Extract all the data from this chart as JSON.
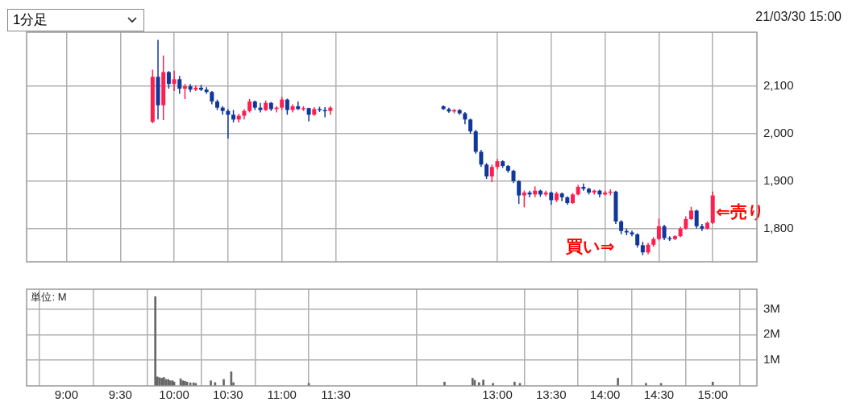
{
  "chart_data": [
    {
      "type": "candlestick",
      "title": "1分足",
      "subtitle": "21/03/30 15:00",
      "x": [
        9.8,
        9.85,
        9.9,
        9.95,
        10,
        10.05,
        10.1,
        10.15,
        10.2,
        10.25,
        10.3,
        10.35,
        10.4,
        10.45,
        10.5,
        10.55,
        10.6,
        10.65,
        10.7,
        10.75,
        10.8,
        10.85,
        10.9,
        10.95,
        11,
        11.05,
        11.1,
        11.15,
        11.2,
        11.25,
        11.3,
        11.35,
        11.4,
        11.45,
        12.5,
        12.55,
        12.6,
        12.65,
        12.7,
        12.75,
        12.8,
        12.85,
        12.9,
        12.95,
        13,
        13.05,
        13.1,
        13.15,
        13.2,
        13.25,
        13.3,
        13.35,
        13.4,
        13.45,
        13.5,
        13.55,
        13.6,
        13.65,
        13.7,
        13.75,
        13.8,
        13.85,
        13.9,
        13.95,
        14,
        14.05,
        14.1,
        14.15,
        14.2,
        14.25,
        14.3,
        14.35,
        14.4,
        14.45,
        14.5,
        14.55,
        14.6,
        14.65,
        14.7,
        14.75,
        14.8,
        14.85,
        14.9,
        14.95,
        15
      ],
      "ohlc": [
        [
          2025,
          2135,
          2022,
          2120
        ],
        [
          2120,
          2198,
          2030,
          2060
        ],
        [
          2060,
          2165,
          2029,
          2130
        ],
        [
          2130,
          2132,
          2095,
          2105
        ],
        [
          2105,
          2133,
          2090,
          2115
        ],
        [
          2115,
          2122,
          2084,
          2095
        ],
        [
          2095,
          2105,
          2073,
          2100
        ],
        [
          2100,
          2105,
          2088,
          2093
        ],
        [
          2093,
          2102,
          2090,
          2097
        ],
        [
          2097,
          2103,
          2090,
          2093
        ],
        [
          2093,
          2098,
          2084,
          2088
        ],
        [
          2088,
          2090,
          2062,
          2068
        ],
        [
          2068,
          2072,
          2050,
          2055
        ],
        [
          2055,
          2058,
          2040,
          2048
        ],
        [
          2048,
          2052,
          1990,
          2040
        ],
        [
          2040,
          2050,
          2024,
          2030
        ],
        [
          2030,
          2042,
          2024,
          2038
        ],
        [
          2038,
          2052,
          2030,
          2048
        ],
        [
          2048,
          2073,
          2045,
          2068
        ],
        [
          2068,
          2070,
          2050,
          2055
        ],
        [
          2055,
          2065,
          2045,
          2050
        ],
        [
          2050,
          2070,
          2048,
          2065
        ],
        [
          2065,
          2067,
          2048,
          2052
        ],
        [
          2052,
          2058,
          2045,
          2055
        ],
        [
          2055,
          2078,
          2050,
          2072
        ],
        [
          2072,
          2074,
          2040,
          2050
        ],
        [
          2050,
          2062,
          2045,
          2058
        ],
        [
          2058,
          2068,
          2050,
          2052
        ],
        [
          2052,
          2058,
          2048,
          2054
        ],
        [
          2054,
          2055,
          2026,
          2040
        ],
        [
          2040,
          2056,
          2038,
          2052
        ],
        [
          2052,
          2057,
          2046,
          2050
        ],
        [
          2050,
          2056,
          2035,
          2048
        ],
        [
          2048,
          2058,
          2040,
          2055
        ],
        [
          2058,
          2060,
          2050,
          2052
        ],
        [
          2052,
          2055,
          2044,
          2047
        ],
        [
          2047,
          2052,
          2043,
          2050
        ],
        [
          2050,
          2052,
          2040,
          2043
        ],
        [
          2043,
          2046,
          2020,
          2030
        ],
        [
          2030,
          2032,
          2000,
          2005
        ],
        [
          2005,
          2008,
          1958,
          1962
        ],
        [
          1962,
          1966,
          1930,
          1935
        ],
        [
          1935,
          1938,
          1905,
          1910
        ],
        [
          1910,
          1935,
          1898,
          1930
        ],
        [
          1930,
          1947,
          1925,
          1942
        ],
        [
          1942,
          1944,
          1928,
          1932
        ],
        [
          1932,
          1934,
          1918,
          1922
        ],
        [
          1922,
          1924,
          1896,
          1900
        ],
        [
          1900,
          1902,
          1852,
          1870
        ],
        [
          1870,
          1880,
          1845,
          1876
        ],
        [
          1876,
          1880,
          1866,
          1872
        ],
        [
          1872,
          1889,
          1866,
          1880
        ],
        [
          1880,
          1882,
          1867,
          1872
        ],
        [
          1872,
          1880,
          1868,
          1876
        ],
        [
          1876,
          1878,
          1850,
          1860
        ],
        [
          1860,
          1878,
          1856,
          1874
        ],
        [
          1874,
          1876,
          1858,
          1866
        ],
        [
          1866,
          1868,
          1850,
          1854
        ],
        [
          1854,
          1875,
          1852,
          1872
        ],
        [
          1872,
          1892,
          1870,
          1888
        ],
        [
          1888,
          1895,
          1880,
          1884
        ],
        [
          1884,
          1886,
          1872,
          1876
        ],
        [
          1876,
          1882,
          1872,
          1880
        ],
        [
          1880,
          1882,
          1866,
          1872
        ],
        [
          1872,
          1880,
          1870,
          1876
        ],
        [
          1876,
          1883,
          1870,
          1878
        ],
        [
          1878,
          1880,
          1810,
          1815
        ],
        [
          1815,
          1818,
          1788,
          1795
        ],
        [
          1795,
          1800,
          1786,
          1792
        ],
        [
          1792,
          1796,
          1784,
          1788
        ],
        [
          1788,
          1790,
          1760,
          1765
        ],
        [
          1765,
          1772,
          1744,
          1750
        ],
        [
          1750,
          1770,
          1746,
          1766
        ],
        [
          1766,
          1782,
          1762,
          1778
        ],
        [
          1778,
          1821,
          1775,
          1805
        ],
        [
          1805,
          1808,
          1776,
          1780
        ],
        [
          1780,
          1784,
          1774,
          1778
        ],
        [
          1778,
          1786,
          1776,
          1784
        ],
        [
          1784,
          1804,
          1782,
          1800
        ],
        [
          1800,
          1826,
          1798,
          1820
        ],
        [
          1820,
          1846,
          1818,
          1838
        ],
        [
          1838,
          1840,
          1800,
          1805
        ],
        [
          1805,
          1810,
          1795,
          1800
        ],
        [
          1800,
          1815,
          1798,
          1812
        ],
        [
          1812,
          1878,
          1810,
          1870
        ]
      ],
      "colors": [
        "#ff1f4f",
        "#10379a",
        "#ff1f4f",
        "#10379a",
        "#ff1f4f",
        "#10379a",
        "#ff1f4f",
        "#10379a",
        "#ff1f4f",
        "#10379a",
        "#10379a",
        "#10379a",
        "#10379a",
        "#10379a",
        "#10379a",
        "#10379a",
        "#ff1f4f",
        "#ff1f4f",
        "#ff1f4f",
        "#10379a",
        "#10379a",
        "#ff1f4f",
        "#10379a",
        "#ff1f4f",
        "#ff1f4f",
        "#10379a",
        "#ff1f4f",
        "#10379a",
        "#ff1f4f",
        "#10379a",
        "#ff1f4f",
        "#10379a",
        "#10379a",
        "#ff1f4f",
        "#10379a",
        "#10379a",
        "#ff1f4f",
        "#10379a",
        "#10379a",
        "#10379a",
        "#10379a",
        "#10379a",
        "#10379a",
        "#ff1f4f",
        "#ff1f4f",
        "#10379a",
        "#10379a",
        "#10379a",
        "#10379a",
        "#ff1f4f",
        "#10379a",
        "#ff1f4f",
        "#10379a",
        "#ff1f4f",
        "#10379a",
        "#ff1f4f",
        "#10379a",
        "#10379a",
        "#ff1f4f",
        "#ff1f4f",
        "#10379a",
        "#10379a",
        "#ff1f4f",
        "#10379a",
        "#ff1f4f",
        "#ff1f4f",
        "#10379a",
        "#10379a",
        "#10379a",
        "#10379a",
        "#10379a",
        "#10379a",
        "#ff1f4f",
        "#ff1f4f",
        "#ff1f4f",
        "#10379a",
        "#10379a",
        "#ff1f4f",
        "#ff1f4f",
        "#ff1f4f",
        "#ff1f4f",
        "#10379a",
        "#10379a",
        "#ff1f4f",
        "#ff1f4f"
      ],
      "xlim": [
        8.63,
        15.41
      ],
      "xticks": [
        {
          "value": 9,
          "label": null
        },
        {
          "value": 9.5,
          "label": null
        },
        {
          "value": 10,
          "label": null
        },
        {
          "value": 10.5,
          "label": null
        },
        {
          "value": 11,
          "label": null
        },
        {
          "value": 11.5,
          "label": null
        },
        {
          "value": 13,
          "label": null
        },
        {
          "value": 13.5,
          "label": null
        },
        {
          "value": 14,
          "label": null
        },
        {
          "value": 14.5,
          "label": null
        },
        {
          "value": 15,
          "label": null
        }
      ],
      "ylim": [
        1730,
        2214
      ],
      "yticks": [
        {
          "value": 1800,
          "label": "1,800"
        },
        {
          "value": 1900,
          "label": "1,900"
        },
        {
          "value": 2000,
          "label": "2,000"
        },
        {
          "value": 2100,
          "label": "2,100"
        }
      ],
      "tick_labels": "y",
      "grid": true,
      "annotations": [
        "買い⇒",
        {
          "text": "⇐売り",
          "x": 15.03,
          "y": 1832
        }
      ]
    },
    {
      "type": "bar",
      "color": "#666666",
      "x": [
        9.825,
        9.845,
        9.865,
        9.885,
        9.905,
        9.925,
        9.945,
        9.965,
        9.985,
        10,
        10.06,
        10.08,
        10.1,
        10.12,
        10.15,
        10.18,
        10.2,
        10.34,
        10.38,
        10.46,
        10.53,
        10.55,
        11.25,
        12.51,
        12.77,
        12.79,
        12.83,
        12.87,
        12.96,
        13.16,
        13.21,
        14.12,
        14.38,
        14.52,
        15
      ],
      "values": [
        3.48,
        0.35,
        0.32,
        0.3,
        0.33,
        0.25,
        0.25,
        0.2,
        0.2,
        0.15,
        0.28,
        0.2,
        0.18,
        0.15,
        0.12,
        0.12,
        0.1,
        0.2,
        0.13,
        0.25,
        0.55,
        0.13,
        0.1,
        0.15,
        0.3,
        0.22,
        0.13,
        0.23,
        0.1,
        0.15,
        0.1,
        0.3,
        0.1,
        0.1,
        0.15
      ],
      "xlim": [
        8.63,
        15.41
      ],
      "xticks": [
        {
          "value": 9,
          "label": "9:00"
        },
        {
          "value": 9.5,
          "label": "9:30"
        },
        {
          "value": 10,
          "label": "10:00"
        },
        {
          "value": 10.5,
          "label": "10:30"
        },
        {
          "value": 11,
          "label": "11:00"
        },
        {
          "value": 11.5,
          "label": "11:30"
        },
        {
          "value": 13,
          "label": "13:00"
        },
        {
          "value": 13.5,
          "label": "13:30"
        },
        {
          "value": 14,
          "label": "14:00"
        },
        {
          "value": 14.5,
          "label": "14:30"
        },
        {
          "value": 15,
          "label": "15:00"
        }
      ],
      "ylim": [
        0,
        3.77
      ],
      "yticks": [
        {
          "value": 1,
          "label": "1M"
        },
        {
          "value": 2,
          "label": "2M"
        },
        {
          "value": 3,
          "label": "3M"
        }
      ],
      "grid": true,
      "annotations": [
        "単位: M"
      ]
    }
  ]
}
